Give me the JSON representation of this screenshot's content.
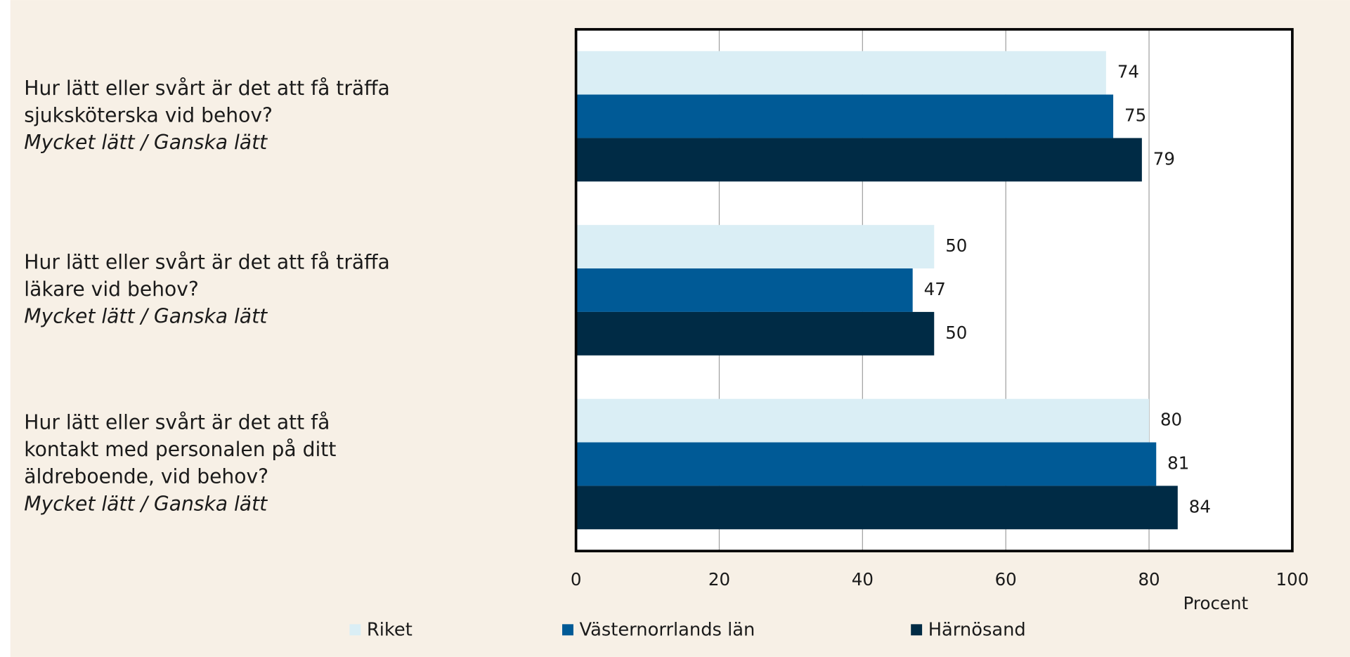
{
  "chart_data": {
    "type": "barh",
    "categories": [
      [
        "Hur lätt eller svårt är det att få träffa",
        "sjuksköterska vid behov?",
        "Mycket lätt / Ganska lätt"
      ],
      [
        "Hur lätt eller svårt är det att få träffa",
        "läkare vid behov?",
        "Mycket lätt / Ganska lätt"
      ],
      [
        "Hur lätt eller svårt är det att få",
        "kontakt med personalen på ditt",
        "äldreboende, vid behov?",
        "Mycket lätt / Ganska lätt"
      ]
    ],
    "series": [
      {
        "name": "Riket",
        "color": "#daeef5",
        "values": [
          74,
          50,
          80
        ]
      },
      {
        "name": "Västernorrlands län",
        "color": "#005a96",
        "values": [
          75,
          47,
          81
        ]
      },
      {
        "name": "Härnösand",
        "color": "#002b45",
        "values": [
          79,
          50,
          84
        ]
      }
    ],
    "xlabel": "Procent",
    "xlim": [
      0,
      100
    ],
    "xticks": [
      0,
      20,
      40,
      60,
      80,
      100
    ],
    "grid": true,
    "legend": "bottom"
  }
}
